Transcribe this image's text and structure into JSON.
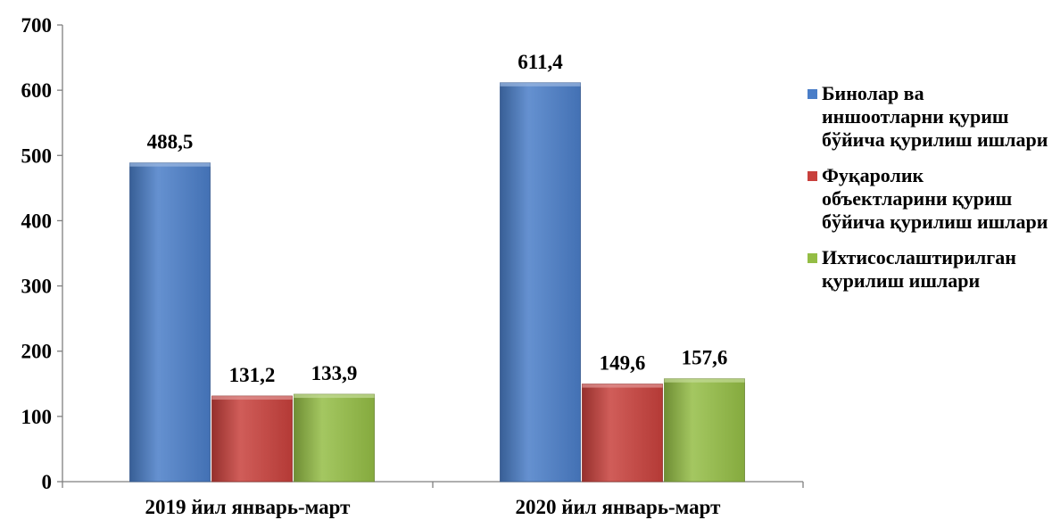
{
  "chart_data": {
    "type": "bar",
    "categories": [
      "2019 йил январь-март",
      "2020 йил январь-март"
    ],
    "series": [
      {
        "name": "Бинолар ва иншоотларни қуриш бўйича қурилиш ишлари",
        "values": [
          488.5,
          611.4
        ],
        "labels": [
          "488,5",
          "611,4"
        ],
        "color": "#4a7ec8"
      },
      {
        "name": "Фуқаролик объектларини қуриш бўйича қурилиш ишлари",
        "values": [
          131.2,
          149.6
        ],
        "labels": [
          "131,2",
          "149,6"
        ],
        "color": "#c8403c"
      },
      {
        "name": "Ихтисослаштирилган қурилиш ишлари",
        "values": [
          133.9,
          157.6
        ],
        "labels": [
          "133,9",
          "157,6"
        ],
        "color": "#94bd45"
      }
    ],
    "yticks": [
      "0",
      "100",
      "200",
      "300",
      "400",
      "500",
      "600",
      "700"
    ],
    "ylim": [
      0,
      700
    ],
    "grid": false,
    "legend_position": "right"
  }
}
